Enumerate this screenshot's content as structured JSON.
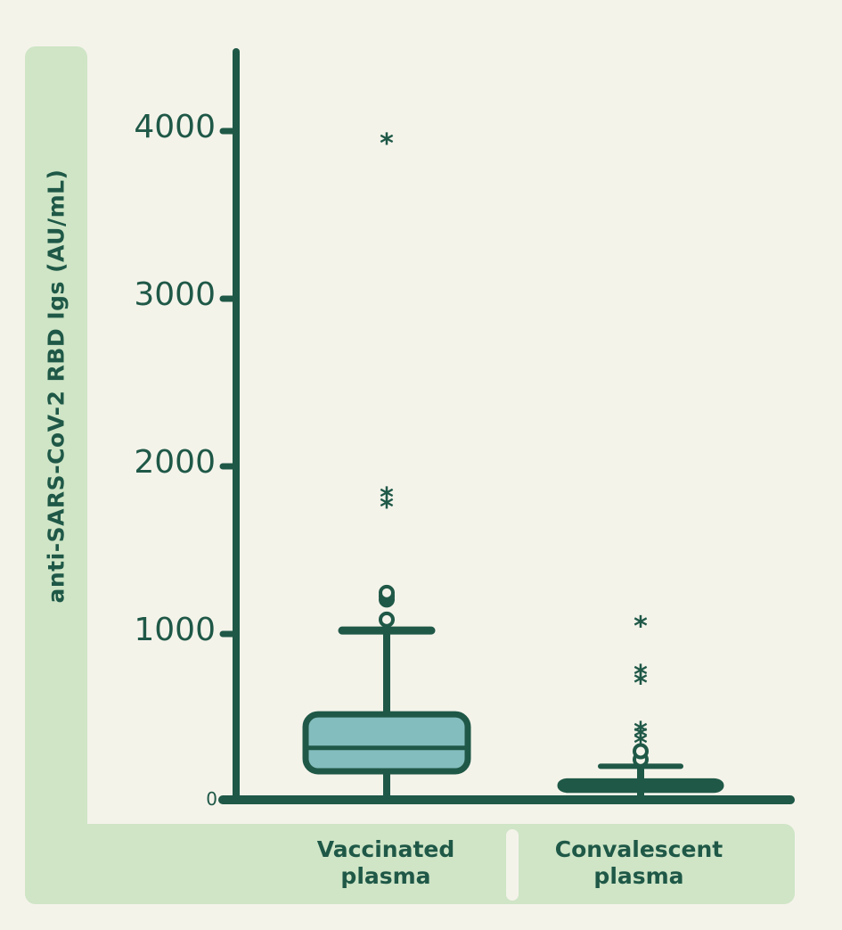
{
  "chart_data": {
    "type": "box",
    "title": "",
    "ylabel": "anti-SARS-CoV-2 RBD Igs (AU/mL)",
    "xlabel": "",
    "ylim": [
      0,
      4400
    ],
    "yticks": [
      "0",
      "1000",
      "2000",
      "3000",
      "4000"
    ],
    "categories": [
      "Vaccinated plasma",
      "Convalescent plasma"
    ],
    "series": [
      {
        "name": "Vaccinated plasma",
        "whisker_low": 0,
        "q1": 170,
        "median": 310,
        "q3": 510,
        "whisker_high": 1010,
        "outliers_circle": [
          1075,
          1195,
          1215,
          1235
        ],
        "outliers_extreme": [
          1760,
          1820,
          3930
        ]
      },
      {
        "name": "Convalescent plasma",
        "whisker_low": 0,
        "q1": 60,
        "median": 85,
        "q3": 110,
        "whisker_high": 200,
        "outliers_circle": [
          240,
          290
        ],
        "outliers_extreme": [
          350,
          390,
          420,
          710,
          760,
          1050
        ]
      }
    ],
    "colors": {
      "box_fill": "#84bdbe",
      "stroke": "#1f5847",
      "panel": "#cfe5c6",
      "background": "#f4f3ea"
    },
    "grid": false,
    "legend": null
  },
  "labels": {
    "ylabel": "anti-SARS-CoV-2 RBD Igs (AU/mL)",
    "cat1_line1": "Vaccinated",
    "cat1_line2": "plasma",
    "cat2_line1": "Convalescent",
    "cat2_line2": "plasma",
    "tick0": "0",
    "tick1000": "1000",
    "tick2000": "2000",
    "tick3000": "3000",
    "tick4000": "4000"
  }
}
